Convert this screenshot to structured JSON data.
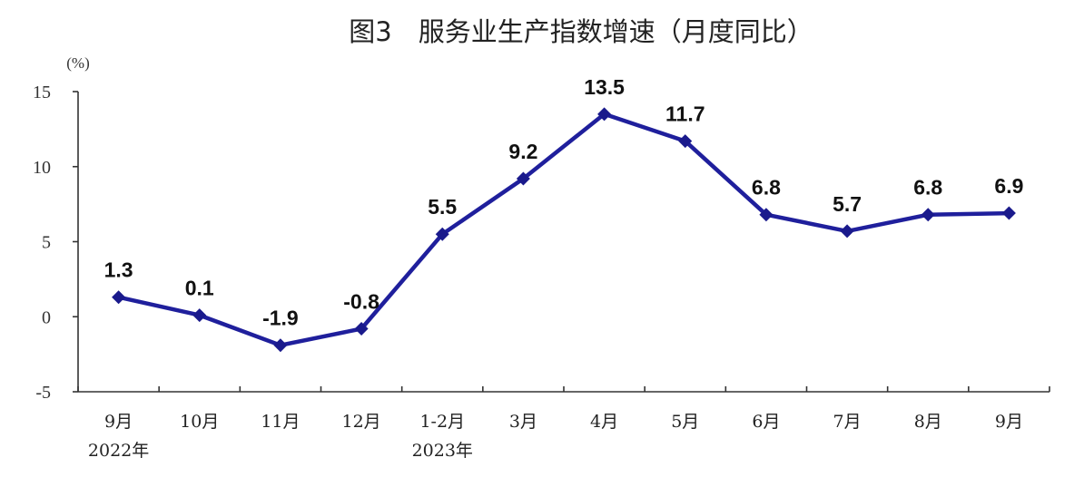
{
  "chart_data": {
    "type": "line",
    "title": "图3　服务业生产指数增速（月度同比）",
    "unit_label": "(%)",
    "categories": [
      "9月",
      "10月",
      "11月",
      "12月",
      "1-2月",
      "3月",
      "4月",
      "5月",
      "6月",
      "7月",
      "8月",
      "9月"
    ],
    "year_labels": [
      "2022年",
      "",
      "",
      "",
      "2023年",
      "",
      "",
      "",
      "",
      "",
      "",
      ""
    ],
    "values": [
      1.3,
      0.1,
      -1.9,
      -0.8,
      5.5,
      9.2,
      13.5,
      11.7,
      6.8,
      5.7,
      6.8,
      6.9
    ],
    "value_labels": [
      "1.3",
      "0.1",
      "-1.9",
      "-0.8",
      "5.5",
      "9.2",
      "13.5",
      "11.7",
      "6.8",
      "5.7",
      "6.8",
      "6.9"
    ],
    "yticks": [
      15,
      10,
      5,
      0,
      -5
    ],
    "ytick_labels": [
      "15",
      "10",
      "5",
      "0",
      "-5"
    ],
    "ylim": [
      -5,
      15
    ],
    "grid": false,
    "legend": "none",
    "colors": {
      "line": "#1f1f9c",
      "marker": "#1a1a8c"
    }
  }
}
